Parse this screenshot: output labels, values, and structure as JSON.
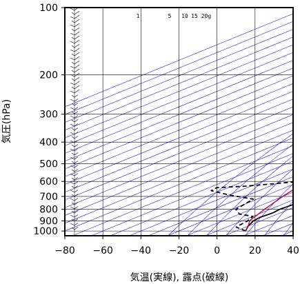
{
  "chart_data": {
    "type": "line",
    "xlabel": "気温(実線), 露点(破線)",
    "ylabel": "気圧(hPa)",
    "xlim": [
      -80,
      40
    ],
    "ylim": [
      1050,
      100
    ],
    "y_scale": "log",
    "grid": true,
    "x_ticks": [
      -80,
      -60,
      -40,
      -20,
      0,
      20,
      40
    ],
    "y_ticks": [
      100,
      200,
      300,
      400,
      500,
      600,
      700,
      800,
      900,
      1000
    ],
    "mixing_ratio_labels": [
      "1",
      "5",
      "10",
      "15",
      "20g"
    ],
    "colors": {
      "temperature": "#000000",
      "dewpoint": "#000000",
      "parcel": "#c8003c",
      "isotherms": "#1a1aff"
    },
    "series": [
      {
        "key": "temperature",
        "style": "solid",
        "points": [
          [
            15,
            1000
          ],
          [
            10,
            950
          ],
          [
            6,
            900
          ],
          [
            5,
            870
          ],
          [
            6,
            830
          ],
          [
            5,
            800
          ],
          [
            6,
            760
          ],
          [
            4,
            720
          ],
          [
            5,
            680
          ],
          [
            3,
            650
          ],
          [
            2,
            620
          ],
          [
            -3,
            600
          ],
          [
            -8,
            560
          ],
          [
            -12,
            530
          ],
          [
            -17,
            500
          ],
          [
            -23,
            460
          ],
          [
            -29,
            420
          ],
          [
            -33,
            400
          ],
          [
            -39,
            370
          ],
          [
            -44,
            340
          ],
          [
            -50,
            300
          ],
          [
            -55,
            270
          ],
          [
            -60,
            240
          ],
          [
            -65,
            215
          ],
          [
            -67,
            200
          ],
          [
            -60,
            190
          ],
          [
            -61,
            170
          ],
          [
            -62,
            150
          ],
          [
            -63,
            130
          ],
          [
            -61,
            125
          ],
          [
            -61,
            110
          ],
          [
            -62,
            105
          ],
          [
            -66,
            100
          ]
        ]
      },
      {
        "key": "dewpoint",
        "style": "dashed",
        "points": [
          [
            15,
            1000
          ],
          [
            5,
            960
          ],
          [
            3,
            900
          ],
          [
            0,
            860
          ],
          [
            -10,
            840
          ],
          [
            -18,
            800
          ],
          [
            -20,
            760
          ],
          [
            -22,
            720
          ],
          [
            -40,
            690
          ],
          [
            -55,
            660
          ],
          [
            -56,
            640
          ],
          [
            -43,
            630
          ],
          [
            -20,
            600
          ],
          [
            -25,
            560
          ],
          [
            -36,
            520
          ],
          [
            -50,
            470
          ],
          [
            -48,
            430
          ],
          [
            -30,
            400
          ],
          [
            -36,
            385
          ],
          [
            -48,
            350
          ],
          [
            -58,
            300
          ],
          [
            -72,
            290
          ],
          [
            -60,
            285
          ]
        ]
      },
      {
        "key": "parcel",
        "style": "solid",
        "points": [
          [
            15,
            1000
          ],
          [
            10,
            950
          ],
          [
            4,
            900
          ],
          [
            -3,
            800
          ],
          [
            -10,
            700
          ],
          [
            -17,
            600
          ],
          [
            -26,
            500
          ],
          [
            -36,
            400
          ],
          [
            -49,
            300
          ],
          [
            -63,
            250
          ],
          [
            -78,
            215
          ],
          [
            -84,
            200
          ]
        ]
      }
    ]
  }
}
